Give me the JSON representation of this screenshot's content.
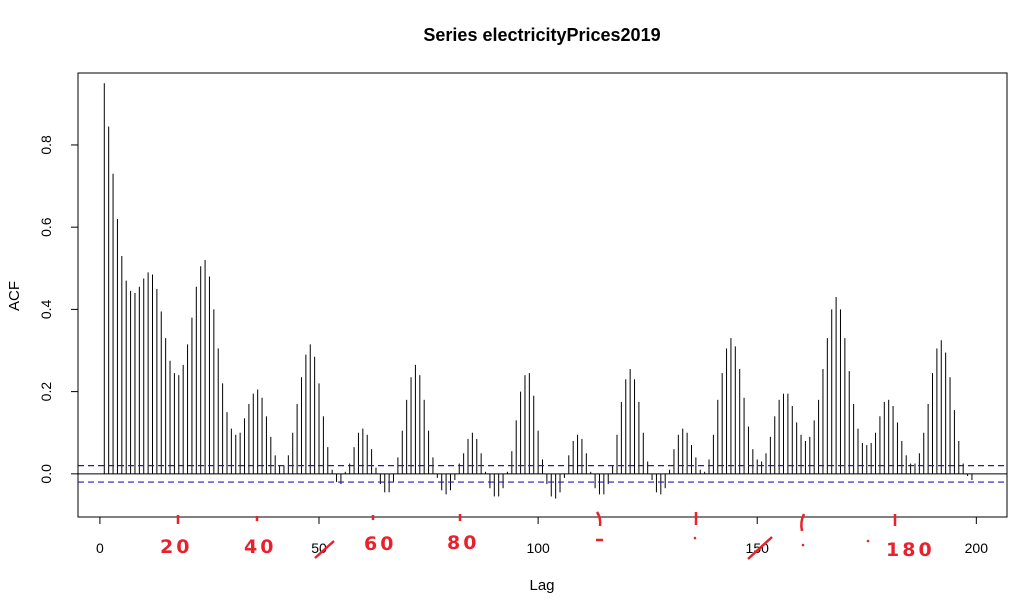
{
  "chart_data": {
    "type": "bar",
    "title": "Series  electricityPrices2019",
    "xlabel": "Lag",
    "ylabel": "ACF",
    "xlim": [
      -5,
      207
    ],
    "ylim": [
      -0.105,
      0.975
    ],
    "x_ticks": [
      "0",
      "50",
      "100",
      "150",
      "200"
    ],
    "y_ticks": [
      "0.0",
      "0.2",
      "0.4",
      "0.6",
      "0.8"
    ],
    "grid": false,
    "confidence_bound": 0.02,
    "lag_start": 1,
    "acf_values": [
      0.95,
      0.845,
      0.73,
      0.62,
      0.53,
      0.47,
      0.445,
      0.44,
      0.455,
      0.475,
      0.49,
      0.485,
      0.45,
      0.395,
      0.33,
      0.275,
      0.245,
      0.24,
      0.265,
      0.315,
      0.38,
      0.455,
      0.505,
      0.52,
      0.48,
      0.4,
      0.305,
      0.22,
      0.15,
      0.11,
      0.095,
      0.1,
      0.135,
      0.17,
      0.195,
      0.205,
      0.185,
      0.14,
      0.09,
      0.045,
      0.02,
      0.02,
      0.045,
      0.1,
      0.17,
      0.235,
      0.29,
      0.315,
      0.285,
      0.22,
      0.14,
      0.065,
      0.01,
      -0.02,
      -0.025,
      0.005,
      0.025,
      0.065,
      0.1,
      0.11,
      0.095,
      0.06,
      0.015,
      -0.025,
      -0.045,
      -0.045,
      -0.02,
      0.04,
      0.105,
      0.18,
      0.235,
      0.265,
      0.24,
      0.18,
      0.105,
      0.04,
      -0.01,
      -0.04,
      -0.05,
      -0.04,
      -0.015,
      0.025,
      0.05,
      0.085,
      0.1,
      0.085,
      0.05,
      0.005,
      -0.035,
      -0.055,
      -0.055,
      -0.035,
      0.005,
      0.055,
      0.13,
      0.2,
      0.24,
      0.245,
      0.19,
      0.105,
      0.035,
      -0.025,
      -0.055,
      -0.06,
      -0.045,
      -0.01,
      0.045,
      0.08,
      0.095,
      0.085,
      0.05,
      0.005,
      -0.035,
      -0.05,
      -0.05,
      -0.025,
      0.02,
      0.095,
      0.175,
      0.23,
      0.255,
      0.23,
      0.175,
      0.1,
      0.03,
      -0.015,
      -0.045,
      -0.05,
      -0.035,
      0.01,
      0.06,
      0.095,
      0.11,
      0.1,
      0.07,
      0.04,
      0.01,
      0.005,
      0.035,
      0.095,
      0.18,
      0.245,
      0.305,
      0.33,
      0.31,
      0.255,
      0.185,
      0.115,
      0.06,
      0.035,
      0.03,
      0.05,
      0.09,
      0.14,
      0.18,
      0.195,
      0.195,
      0.165,
      0.125,
      0.095,
      0.08,
      0.09,
      0.13,
      0.18,
      0.255,
      0.33,
      0.4,
      0.43,
      0.4,
      0.33,
      0.25,
      0.17,
      0.11,
      0.075,
      0.07,
      0.075,
      0.1,
      0.14,
      0.175,
      0.18,
      0.165,
      0.125,
      0.08,
      0.045,
      0.025,
      0.025,
      0.05,
      0.1,
      0.17,
      0.245,
      0.305,
      0.325,
      0.295,
      0.235,
      0.155,
      0.08,
      0.025,
      -0.005,
      -0.015
    ],
    "annotations": {
      "note_20": "20",
      "note_40": "40",
      "note_60": "60",
      "note_80": "80",
      "note_180": "180"
    }
  }
}
